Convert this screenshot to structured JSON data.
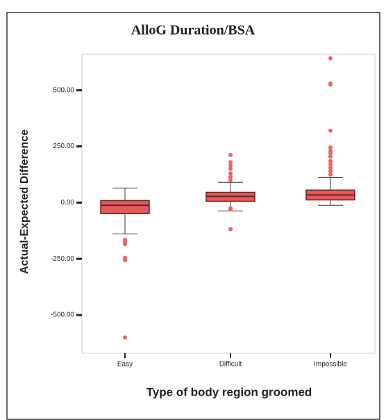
{
  "chart_data": {
    "type": "box",
    "title": "AlloG Duration/BSA",
    "x_label": "Type of body region groomed",
    "y_label": "Actual-Expected Difference",
    "categories": [
      "Easy",
      "Difficult",
      "Impossible"
    ],
    "color": "#e35a5a",
    "edge_color": "#6b2020",
    "outlier_color": "#f06262",
    "boxes": [
      {
        "whisker_low": -139,
        "q1": -49,
        "median": -12,
        "q3": 9,
        "whisker_high": 65,
        "outliers": [
          -165,
          -175,
          -185,
          -245,
          -256,
          -600
        ]
      },
      {
        "whisker_low": -37,
        "q1": 6,
        "median": 28,
        "q3": 46,
        "whisker_high": 90,
        "outliers": [
          212,
          180,
          165,
          150,
          130,
          115,
          100,
          -25,
          -30,
          -118
        ]
      },
      {
        "whisker_low": -12,
        "q1": 12,
        "median": 34,
        "q3": 56,
        "whisker_high": 111,
        "outliers": [
          642,
          530,
          525,
          320,
          245,
          230,
          220,
          205,
          185,
          170,
          155,
          140,
          125
        ]
      }
    ],
    "ylim": [
      -670,
      660
    ],
    "yticks": [
      {
        "value": -500,
        "label": "-500.00"
      },
      {
        "value": -250,
        "label": "-250.00"
      },
      {
        "value": 0,
        "label": "0.00"
      },
      {
        "value": 250,
        "label": "250.00"
      },
      {
        "value": 500,
        "label": "500.00"
      }
    ]
  }
}
